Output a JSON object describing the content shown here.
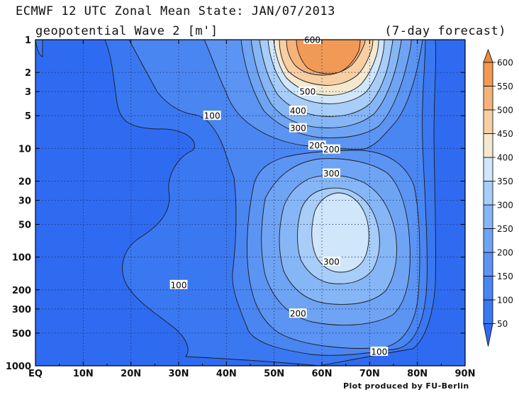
{
  "header": {
    "title": "ECMWF 12 UTC Zonal Mean State: JAN/07/2013",
    "subtitle": "geopotential Wave 2 [m']",
    "forecast": "(7-day forecast)"
  },
  "footer": {
    "credit": "Plot produced by FU-Berlin"
  },
  "chart_data": {
    "type": "heatmap",
    "title": "ECMWF 12 UTC Zonal Mean State: JAN/07/2013",
    "subtitle": "geopotential Wave 2 [m']",
    "x_ticks": [
      "EQ",
      "10N",
      "20N",
      "30N",
      "40N",
      "50N",
      "60N",
      "70N",
      "80N",
      "90N"
    ],
    "x_tick_values": [
      0,
      10,
      20,
      30,
      40,
      50,
      60,
      70,
      80,
      90
    ],
    "xlim": [
      0,
      90
    ],
    "y_ticks": [
      "1",
      "2",
      "3",
      "5",
      "10",
      "20",
      "30",
      "50",
      "100",
      "200",
      "300",
      "500",
      "1000"
    ],
    "y_tick_values": [
      1,
      2,
      3,
      5,
      10,
      20,
      30,
      50,
      100,
      200,
      300,
      500,
      1000
    ],
    "ylim": [
      1000,
      1
    ],
    "y_scale": "log",
    "grid": true,
    "colorbar": {
      "levels": [
        50,
        100,
        150,
        200,
        250,
        300,
        350,
        400,
        450,
        500,
        550,
        600
      ],
      "labels": [
        "50",
        "100",
        "150",
        "200",
        "250",
        "300",
        "350",
        "400",
        "450",
        "500",
        "550",
        "600"
      ],
      "colors": [
        "#2f6bf0",
        "#3a78f1",
        "#4a86f2",
        "#5b94f3",
        "#6fa4f4",
        "#86b6f6",
        "#a7cdf8",
        "#cfe6fb",
        "#f4e8cf",
        "#f7cfa2",
        "#f5b27a",
        "#f19a55",
        "#ed8a3c"
      ]
    },
    "contour_labels": [
      {
        "lat": 37,
        "p": 5,
        "text": "100"
      },
      {
        "lat": 30,
        "p": 180,
        "text": "100"
      },
      {
        "lat": 58,
        "p": 1,
        "text": "600"
      },
      {
        "lat": 57,
        "p": 3,
        "text": "500"
      },
      {
        "lat": 55,
        "p": 4.5,
        "text": "400"
      },
      {
        "lat": 55,
        "p": 6.5,
        "text": "300"
      },
      {
        "lat": 59,
        "p": 9.4,
        "text": "200"
      },
      {
        "lat": 62,
        "p": 10.2,
        "text": "200"
      },
      {
        "lat": 62,
        "p": 17,
        "text": "300"
      },
      {
        "lat": 62,
        "p": 110,
        "text": "300"
      },
      {
        "lat": 55,
        "p": 330,
        "text": "200"
      },
      {
        "lat": 72,
        "p": 740,
        "text": "100"
      }
    ]
  }
}
